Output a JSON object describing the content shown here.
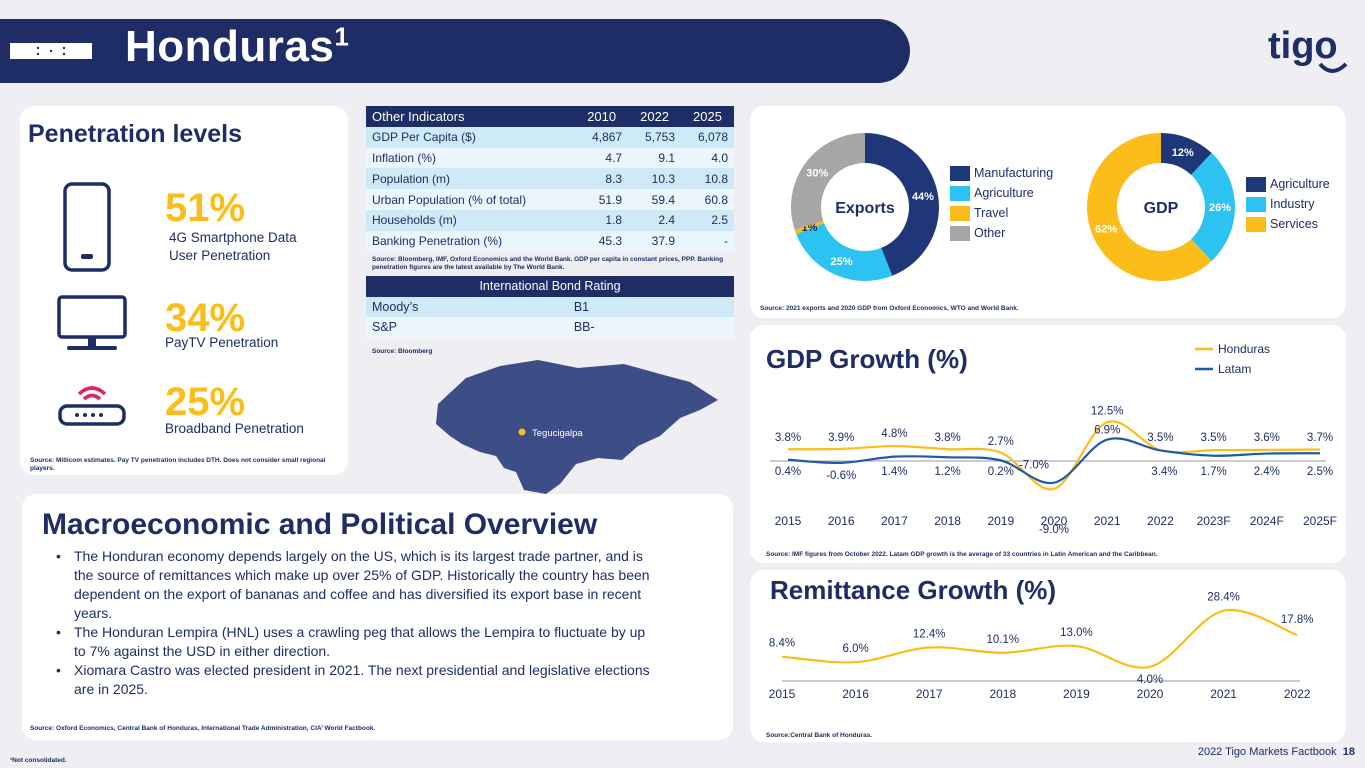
{
  "header": {
    "title": "Honduras",
    "title_sup": "1",
    "logo_text": "tigo"
  },
  "penetration": {
    "title": "Penetration levels",
    "items": [
      {
        "icon": "smartphone-icon",
        "value": "51%",
        "label_line1": "4G Smartphone Data",
        "label_line2": "User Penetration"
      },
      {
        "icon": "tv-icon",
        "value": "34%",
        "label_line1": "PayTV Penetration",
        "label_line2": ""
      },
      {
        "icon": "router-icon",
        "value": "25%",
        "label_line1": "Broadband Penetration",
        "label_line2": ""
      }
    ],
    "source": "Source: Millicom estimates. Pay TV penetration includes DTH.   Does not consider small regional players."
  },
  "indicators": {
    "headers": [
      "Other Indicators",
      "2010",
      "2022",
      "2025"
    ],
    "rows": [
      [
        "GDP Per Capita ($)",
        "4,867",
        "5,753",
        "6,078"
      ],
      [
        "Inflation (%)",
        "4.7",
        "9.1",
        "4.0"
      ],
      [
        "Population (m)",
        "8.3",
        "10.3",
        "10.8"
      ],
      [
        "Urban Population (% of total)",
        "51.9",
        "59.4",
        "60.8"
      ],
      [
        "Households (m)",
        "1.8",
        "2.4",
        "2.5"
      ],
      [
        "Banking Penetration (%)",
        "45.3",
        "37.9",
        "-"
      ]
    ],
    "source": "Source: Bloomberg, IMF, Oxford Economics and the World Bank. GDP per capita in constant prices, PPP. Banking penetration figures are the latest available by The World Bank."
  },
  "bond_rating": {
    "header": "International Bond Rating",
    "rows": [
      [
        "Moody’s",
        "B1"
      ],
      [
        "S&P",
        "BB-"
      ]
    ],
    "source": "Source: Bloomberg"
  },
  "map": {
    "city": "Tegucigalpa"
  },
  "donuts": {
    "exports": {
      "center": "Exports",
      "slices": [
        {
          "label": "Manufacturing",
          "value": 44,
          "text": "44%",
          "color": "#1f3778"
        },
        {
          "label": "Agriculture",
          "value": 25,
          "text": "25%",
          "color": "#2cc2f2"
        },
        {
          "label": "Travel",
          "value": 1,
          "text": "1%",
          "color": "#fbbd1a"
        },
        {
          "label": "Other",
          "value": 30,
          "text": "30%",
          "color": "#a6a6a6"
        }
      ]
    },
    "gdp": {
      "center": "GDP",
      "slices": [
        {
          "label": "Agriculture",
          "value": 12,
          "text": "12%",
          "color": "#1f3778"
        },
        {
          "label": "Industry",
          "value": 26,
          "text": "26%",
          "color": "#2cc2f2"
        },
        {
          "label": "Services",
          "value": 62,
          "text": "62%",
          "color": "#fbbd1a"
        }
      ]
    },
    "source": "Source: 2021 exports and 2020 GDP from Oxford Economics, WTO and World Bank."
  },
  "gdp_growth": {
    "title": "GDP Growth (%)",
    "source": "Source: IMF figures from October 2022. Latam GDP growth is the average of 33 countries in Latin American and the Caribbean."
  },
  "remittance": {
    "title": "Remittance Growth (%)",
    "source": "Source:Central Bank of Honduras."
  },
  "macro": {
    "title": "Macroeconomic and Political Overview",
    "bullets": [
      "The Honduran economy depends largely on the US, which is its largest trade partner, and is the source of remittances which make up over 25% of GDP. Historically the country has been dependent on the export of bananas and coffee and has diversified its export base in recent years.",
      "The Honduran Lempira (HNL) uses a crawling peg that allows the Lempira to fluctuate by up to 7% against the USD in either direction.",
      "Xiomara Castro was elected president in 2021. The next presidential and legislative elections are in 2025."
    ],
    "source": "Source: Oxford Economics, Central Bank of Honduras, International Trade Administration, CIA’ World Factbook."
  },
  "footer": {
    "note": "¹Not consolidated.",
    "factbook": "2022 Tigo Markets Factbook",
    "page": "18"
  },
  "chart_data": [
    {
      "type": "pie",
      "title": "Exports",
      "categories": [
        "Manufacturing",
        "Agriculture",
        "Travel",
        "Other"
      ],
      "values": [
        44,
        25,
        1,
        30
      ],
      "legend": "right"
    },
    {
      "type": "pie",
      "title": "GDP",
      "categories": [
        "Agriculture",
        "Industry",
        "Services"
      ],
      "values": [
        12,
        26,
        62
      ],
      "legend": "right"
    },
    {
      "type": "line",
      "title": "GDP Growth (%)",
      "categories": [
        "2015",
        "2016",
        "2017",
        "2018",
        "2019",
        "2020",
        "2021",
        "2022",
        "2023F",
        "2024F",
        "2025F"
      ],
      "series": [
        {
          "name": "Honduras",
          "color": "#fbbd1a",
          "values": [
            3.8,
            3.9,
            4.8,
            3.8,
            2.7,
            -9.0,
            12.5,
            3.5,
            3.5,
            3.6,
            3.7
          ],
          "labels": [
            "3.8%",
            "3.9%",
            "4.8%",
            "3.8%",
            "2.7%",
            "-9.0%",
            "12.5%",
            "3.5%",
            "3.5%",
            "3.6%",
            "3.7%"
          ]
        },
        {
          "name": "Latam",
          "color": "#1f5aa6",
          "values": [
            0.4,
            -0.6,
            1.4,
            1.2,
            0.2,
            -7.0,
            6.9,
            3.4,
            1.7,
            2.4,
            2.5
          ],
          "labels": [
            "0.4%",
            "-0.6%",
            "1.4%",
            "1.2%",
            "0.2%",
            "-7.0%",
            "6.9%",
            "3.4%",
            "1.7%",
            "2.4%",
            "2.5%"
          ]
        }
      ],
      "legend": "top-right",
      "grid": false
    },
    {
      "type": "line",
      "title": "Remittance Growth (%)",
      "categories": [
        "2015",
        "2016",
        "2017",
        "2018",
        "2019",
        "2020",
        "2021",
        "2022"
      ],
      "series": [
        {
          "color": "#fbbd1a",
          "values": [
            8.4,
            6.0,
            12.4,
            10.1,
            13.0,
            4.0,
            28.4,
            17.8
          ],
          "labels": [
            "8.4%",
            "6.0%",
            "12.4%",
            "10.1%",
            "13.0%",
            "4.0%",
            "28.4%",
            "17.8%"
          ]
        }
      ],
      "grid": false
    }
  ]
}
